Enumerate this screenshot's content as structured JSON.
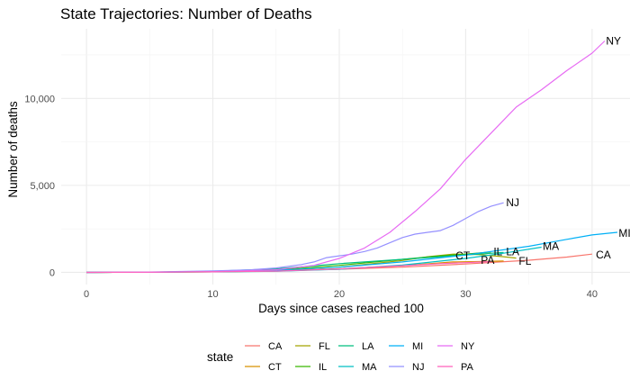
{
  "chart_data": {
    "type": "line",
    "title": "State Trajectories: Number of Deaths",
    "xlabel": "Days since cases reached 100",
    "ylabel": "Number of deaths",
    "xlim": [
      -2,
      43
    ],
    "ylim": [
      -700,
      14000
    ],
    "x_ticks": [
      0,
      10,
      20,
      30,
      40
    ],
    "x_tick_labels": [
      "0",
      "10",
      "20",
      "30",
      "40"
    ],
    "y_ticks": [
      0,
      5000,
      10000
    ],
    "y_tick_labels": [
      "0",
      "5,000",
      "10,000"
    ],
    "grid": true,
    "legend_title": "state",
    "legend_position": "bottom",
    "series": [
      {
        "name": "CA",
        "color": "#F8766D",
        "x": [
          0,
          5,
          10,
          15,
          20,
          25,
          30,
          35,
          38,
          40
        ],
        "y": [
          0,
          15,
          40,
          90,
          180,
          300,
          480,
          700,
          880,
          1050
        ]
      },
      {
        "name": "CT",
        "color": "#D89000",
        "x": [
          0,
          5,
          10,
          15,
          20,
          25,
          29,
          31,
          33
        ],
        "y": [
          0,
          10,
          30,
          80,
          200,
          380,
          600,
          620,
          650
        ]
      },
      {
        "name": "FL",
        "color": "#A3A500",
        "x": [
          0,
          5,
          10,
          15,
          20,
          25,
          27,
          29,
          31,
          33,
          34
        ],
        "y": [
          0,
          10,
          30,
          80,
          300,
          680,
          900,
          1050,
          1030,
          900,
          820
        ]
      },
      {
        "name": "IL",
        "color": "#39B600",
        "x": [
          0,
          5,
          10,
          15,
          20,
          25,
          28,
          30,
          32
        ],
        "y": [
          0,
          10,
          50,
          140,
          400,
          750,
          950,
          1050,
          1170
        ]
      },
      {
        "name": "LA",
        "color": "#00BF7D",
        "x": [
          0,
          5,
          10,
          15,
          20,
          25,
          30,
          33
        ],
        "y": [
          0,
          15,
          60,
          200,
          500,
          750,
          1000,
          1150
        ]
      },
      {
        "name": "MA",
        "color": "#00BFC4",
        "x": [
          0,
          5,
          10,
          15,
          20,
          25,
          30,
          33,
          36
        ],
        "y": [
          0,
          10,
          30,
          60,
          180,
          420,
          800,
          1100,
          1450
        ]
      },
      {
        "name": "MI",
        "color": "#00B0F6",
        "x": [
          0,
          5,
          10,
          15,
          20,
          25,
          30,
          35,
          38,
          40,
          42
        ],
        "y": [
          0,
          10,
          40,
          120,
          300,
          600,
          1000,
          1500,
          1900,
          2150,
          2300
        ]
      },
      {
        "name": "NJ",
        "color": "#9590FF",
        "x": [
          0,
          5,
          10,
          13,
          15,
          17,
          18,
          19,
          20,
          21,
          22,
          23,
          24,
          25,
          26,
          27,
          28,
          29,
          30,
          31,
          32,
          33
        ],
        "y": [
          0,
          20,
          80,
          150,
          250,
          450,
          600,
          850,
          950,
          1050,
          1200,
          1400,
          1700,
          2000,
          2200,
          2300,
          2400,
          2700,
          3100,
          3500,
          3800,
          4000
        ]
      },
      {
        "name": "NY",
        "color": "#E76BF3",
        "x": [
          0,
          5,
          10,
          15,
          18,
          20,
          22,
          24,
          26,
          28,
          30,
          32,
          34,
          36,
          38,
          40,
          41
        ],
        "y": [
          0,
          10,
          40,
          150,
          400,
          800,
          1400,
          2300,
          3500,
          4800,
          6500,
          8000,
          9500,
          10500,
          11600,
          12600,
          13300
        ]
      },
      {
        "name": "PA",
        "color": "#FF62BC",
        "x": [
          0,
          5,
          10,
          15,
          20,
          25,
          28,
          30,
          32
        ],
        "y": [
          0,
          10,
          30,
          70,
          200,
          380,
          500,
          560,
          620
        ]
      }
    ],
    "end_labels": [
      {
        "text": "NY",
        "x": 41.1,
        "y": 13300
      },
      {
        "text": "NJ",
        "x": 33.2,
        "y": 4000
      },
      {
        "text": "MI",
        "x": 42.1,
        "y": 2250
      },
      {
        "text": "MA",
        "x": 36.1,
        "y": 1500
      },
      {
        "text": "LA",
        "x": 33.2,
        "y": 1200
      },
      {
        "text": "IL",
        "x": 32.2,
        "y": 1200
      },
      {
        "text": "CT",
        "x": 29.2,
        "y": 950
      },
      {
        "text": "PA",
        "x": 31.2,
        "y": 700
      },
      {
        "text": "FL",
        "x": 34.2,
        "y": 650
      },
      {
        "text": "CA",
        "x": 40.3,
        "y": 1000
      }
    ]
  }
}
